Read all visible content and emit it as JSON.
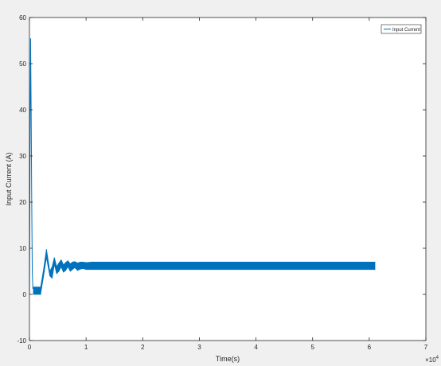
{
  "chart_data": {
    "type": "line",
    "title": "",
    "xlabel": "Time(s)",
    "ylabel": "Input Current (A)",
    "x_exponent_label": "×10",
    "x_exponent_power": "4",
    "xlim": [
      0,
      7
    ],
    "ylim": [
      -10,
      60
    ],
    "xticks": [
      0,
      1,
      2,
      3,
      4,
      5,
      6,
      7
    ],
    "yticks": [
      -10,
      0,
      10,
      20,
      30,
      40,
      50,
      60
    ],
    "grid": false,
    "legend": {
      "position": "top-right",
      "entries": [
        "Input Current"
      ]
    },
    "series_color": "#0072bd",
    "series": [
      {
        "name": "Input Current",
        "spike": {
          "x": [
            0.0,
            0.01,
            0.02,
            0.03,
            0.04,
            0.05,
            0.06
          ],
          "y": [
            0.0,
            30.0,
            55.5,
            40.0,
            20.0,
            5.0,
            1.2
          ]
        },
        "band_upper": {
          "x": [
            0.07,
            0.2,
            0.2,
            0.25,
            0.3,
            0.36,
            0.4,
            0.44,
            0.48,
            0.52,
            0.56,
            0.6,
            0.64,
            0.68,
            0.72,
            0.76,
            0.8,
            0.85,
            0.9,
            0.95,
            1.0,
            1.1,
            1.2,
            1.3,
            6.1
          ],
          "y": [
            1.6,
            1.6,
            1.8,
            5.5,
            9.8,
            5.0,
            6.0,
            8.0,
            6.0,
            6.8,
            7.5,
            6.4,
            6.9,
            7.3,
            6.6,
            7.0,
            7.1,
            6.8,
            7.0,
            7.0,
            6.9,
            7.0,
            7.0,
            7.0,
            7.0
          ]
        },
        "band_lower": {
          "x": [
            0.07,
            0.2,
            0.2,
            0.25,
            0.3,
            0.36,
            0.4,
            0.44,
            0.48,
            0.52,
            0.56,
            0.6,
            0.64,
            0.68,
            0.72,
            0.76,
            0.8,
            0.85,
            0.9,
            0.95,
            1.0,
            1.1,
            1.2,
            1.3,
            6.1
          ],
          "y": [
            0.0,
            0.0,
            0.3,
            4.0,
            8.0,
            4.0,
            3.5,
            6.5,
            4.5,
            5.0,
            6.0,
            4.8,
            5.2,
            6.0,
            5.0,
            5.4,
            5.8,
            5.2,
            5.5,
            5.6,
            5.4,
            5.4,
            5.4,
            5.4,
            5.4
          ]
        }
      }
    ]
  }
}
